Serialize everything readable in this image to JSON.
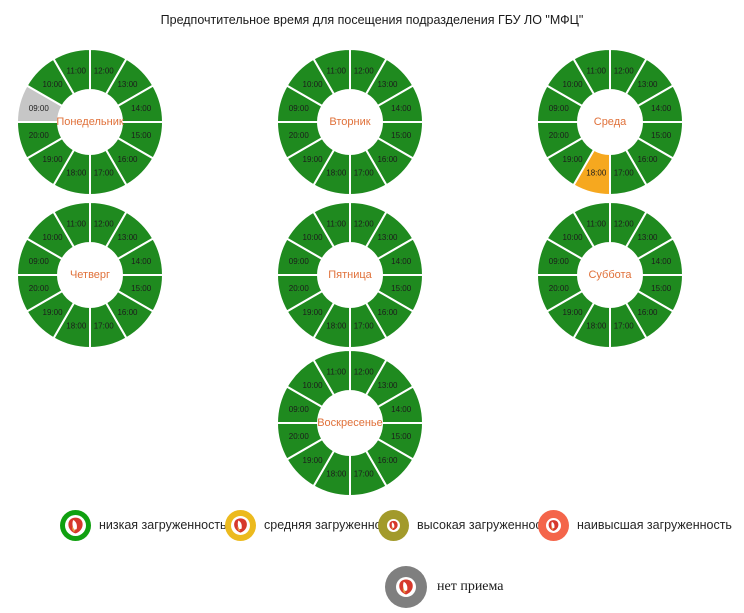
{
  "title": "Предпочтительное время для посещения подразделения ГБУ ЛО \"МФЦ\"",
  "colors": {
    "low": "#1f8a1f",
    "medium": "#f6a81f",
    "high": "#a29a2b",
    "highest": "#f4654a",
    "none": "#c6c6c6",
    "legend_low": "#10a010",
    "legend_medium": "#ecba1e",
    "legend_high": "#a29a2b",
    "legend_highest": "#f4654a",
    "legend_none": "#7f7f7f",
    "logo_red": "#d6382c",
    "logo_accent": "#e8a33d",
    "day_label": "#e0713a",
    "hour_label": "#1c1c1c"
  },
  "chart_data": [
    {
      "type": "donut",
      "day": "Понедельник",
      "start_angle_deg": 270,
      "direction": "clockwise",
      "segment_sweep_deg": 30,
      "segments": [
        {
          "hour": "09:00",
          "level": "none"
        },
        {
          "hour": "10:00",
          "level": "low"
        },
        {
          "hour": "11:00",
          "level": "low"
        },
        {
          "hour": "12:00",
          "level": "low"
        },
        {
          "hour": "13:00",
          "level": "low"
        },
        {
          "hour": "14:00",
          "level": "low"
        },
        {
          "hour": "15:00",
          "level": "low"
        },
        {
          "hour": "16:00",
          "level": "low"
        },
        {
          "hour": "17:00",
          "level": "low"
        },
        {
          "hour": "18:00",
          "level": "low"
        },
        {
          "hour": "19:00",
          "level": "low"
        },
        {
          "hour": "20:00",
          "level": "low"
        }
      ]
    },
    {
      "type": "donut",
      "day": "Вторник",
      "start_angle_deg": 270,
      "direction": "clockwise",
      "segment_sweep_deg": 30,
      "segments": [
        {
          "hour": "09:00",
          "level": "low"
        },
        {
          "hour": "10:00",
          "level": "low"
        },
        {
          "hour": "11:00",
          "level": "low"
        },
        {
          "hour": "12:00",
          "level": "low"
        },
        {
          "hour": "13:00",
          "level": "low"
        },
        {
          "hour": "14:00",
          "level": "low"
        },
        {
          "hour": "15:00",
          "level": "low"
        },
        {
          "hour": "16:00",
          "level": "low"
        },
        {
          "hour": "17:00",
          "level": "low"
        },
        {
          "hour": "18:00",
          "level": "low"
        },
        {
          "hour": "19:00",
          "level": "low"
        },
        {
          "hour": "20:00",
          "level": "low"
        }
      ]
    },
    {
      "type": "donut",
      "day": "Среда",
      "start_angle_deg": 270,
      "direction": "clockwise",
      "segment_sweep_deg": 30,
      "segments": [
        {
          "hour": "09:00",
          "level": "low"
        },
        {
          "hour": "10:00",
          "level": "low"
        },
        {
          "hour": "11:00",
          "level": "low"
        },
        {
          "hour": "12:00",
          "level": "low"
        },
        {
          "hour": "13:00",
          "level": "low"
        },
        {
          "hour": "14:00",
          "level": "low"
        },
        {
          "hour": "15:00",
          "level": "low"
        },
        {
          "hour": "16:00",
          "level": "low"
        },
        {
          "hour": "17:00",
          "level": "low"
        },
        {
          "hour": "18:00",
          "level": "medium"
        },
        {
          "hour": "19:00",
          "level": "low"
        },
        {
          "hour": "20:00",
          "level": "low"
        }
      ]
    },
    {
      "type": "donut",
      "day": "Четверг",
      "start_angle_deg": 270,
      "direction": "clockwise",
      "segment_sweep_deg": 30,
      "segments": [
        {
          "hour": "09:00",
          "level": "low"
        },
        {
          "hour": "10:00",
          "level": "low"
        },
        {
          "hour": "11:00",
          "level": "low"
        },
        {
          "hour": "12:00",
          "level": "low"
        },
        {
          "hour": "13:00",
          "level": "low"
        },
        {
          "hour": "14:00",
          "level": "low"
        },
        {
          "hour": "15:00",
          "level": "low"
        },
        {
          "hour": "16:00",
          "level": "low"
        },
        {
          "hour": "17:00",
          "level": "low"
        },
        {
          "hour": "18:00",
          "level": "low"
        },
        {
          "hour": "19:00",
          "level": "low"
        },
        {
          "hour": "20:00",
          "level": "low"
        }
      ]
    },
    {
      "type": "donut",
      "day": "Пятница",
      "start_angle_deg": 270,
      "direction": "clockwise",
      "segment_sweep_deg": 30,
      "segments": [
        {
          "hour": "09:00",
          "level": "low"
        },
        {
          "hour": "10:00",
          "level": "low"
        },
        {
          "hour": "11:00",
          "level": "low"
        },
        {
          "hour": "12:00",
          "level": "low"
        },
        {
          "hour": "13:00",
          "level": "low"
        },
        {
          "hour": "14:00",
          "level": "low"
        },
        {
          "hour": "15:00",
          "level": "low"
        },
        {
          "hour": "16:00",
          "level": "low"
        },
        {
          "hour": "17:00",
          "level": "low"
        },
        {
          "hour": "18:00",
          "level": "low"
        },
        {
          "hour": "19:00",
          "level": "low"
        },
        {
          "hour": "20:00",
          "level": "low"
        }
      ]
    },
    {
      "type": "donut",
      "day": "Суббота",
      "start_angle_deg": 270,
      "direction": "clockwise",
      "segment_sweep_deg": 30,
      "segments": [
        {
          "hour": "09:00",
          "level": "low"
        },
        {
          "hour": "10:00",
          "level": "low"
        },
        {
          "hour": "11:00",
          "level": "low"
        },
        {
          "hour": "12:00",
          "level": "low"
        },
        {
          "hour": "13:00",
          "level": "low"
        },
        {
          "hour": "14:00",
          "level": "low"
        },
        {
          "hour": "15:00",
          "level": "low"
        },
        {
          "hour": "16:00",
          "level": "low"
        },
        {
          "hour": "17:00",
          "level": "low"
        },
        {
          "hour": "18:00",
          "level": "low"
        },
        {
          "hour": "19:00",
          "level": "low"
        },
        {
          "hour": "20:00",
          "level": "low"
        }
      ]
    },
    {
      "type": "donut",
      "day": "Воскресенье",
      "start_angle_deg": 270,
      "direction": "clockwise",
      "segment_sweep_deg": 30,
      "segments": [
        {
          "hour": "09:00",
          "level": "low"
        },
        {
          "hour": "10:00",
          "level": "low"
        },
        {
          "hour": "11:00",
          "level": "low"
        },
        {
          "hour": "12:00",
          "level": "low"
        },
        {
          "hour": "13:00",
          "level": "low"
        },
        {
          "hour": "14:00",
          "level": "low"
        },
        {
          "hour": "15:00",
          "level": "low"
        },
        {
          "hour": "16:00",
          "level": "low"
        },
        {
          "hour": "17:00",
          "level": "low"
        },
        {
          "hour": "18:00",
          "level": "low"
        },
        {
          "hour": "19:00",
          "level": "low"
        },
        {
          "hour": "20:00",
          "level": "low"
        }
      ]
    }
  ],
  "legend": {
    "items": [
      {
        "label": "низкая загруженность",
        "level": "low"
      },
      {
        "label": "средняя загруженность",
        "level": "medium"
      },
      {
        "label": "высокая загруженность",
        "level": "high"
      },
      {
        "label": "наивысшая загруженность",
        "level": "highest"
      }
    ],
    "no_service": {
      "label": "нет приема",
      "level": "none"
    }
  }
}
